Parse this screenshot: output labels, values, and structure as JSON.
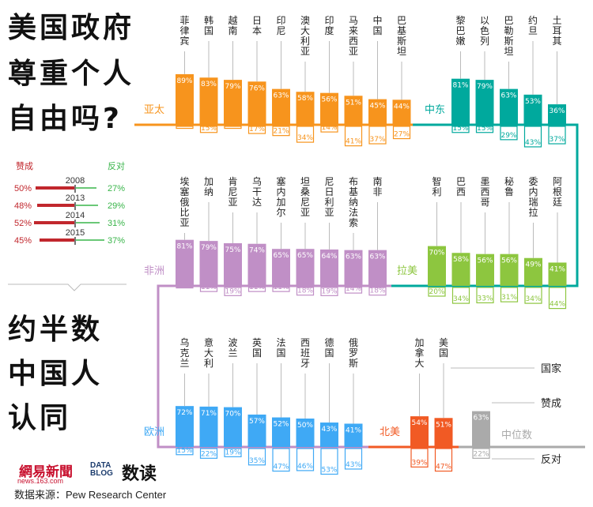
{
  "title_lines": [
    "美国政府",
    "尊重个人",
    "自由吗?"
  ],
  "subtitle_lines": [
    "约半数",
    "中国人",
    "认同"
  ],
  "source": "数据来源：Pew Research Center",
  "logos": {
    "netease": "網易新聞",
    "netease_sub": "news.163.com",
    "datablog": "DATA BLOG",
    "shudu": "数读"
  },
  "legend_key": {
    "country": "国家",
    "favor": "赞成",
    "median": "中位数",
    "oppose": "反对",
    "median_favor": 63,
    "median_oppose": 22
  },
  "trend_legend": {
    "favor_label": "赞成",
    "oppose_label": "反对",
    "rows": [
      {
        "year": "2008",
        "favor": 50,
        "oppose": 27
      },
      {
        "year": "2013",
        "favor": 48,
        "oppose": 29
      },
      {
        "year": "2014",
        "favor": 52,
        "oppose": 31
      },
      {
        "year": "2015",
        "favor": 45,
        "oppose": 37
      }
    ]
  },
  "colors": {
    "asia": "#f7941d",
    "mideast": "#00a99d",
    "africa": "#c08fc6",
    "latam": "#8dc63f",
    "europe": "#3fa9f5",
    "namerica": "#f15a24",
    "median": "#aaaaaa",
    "favor": "#c1272d",
    "oppose": "#39b54a"
  },
  "chart_data": {
    "type": "bar",
    "regions": [
      {
        "name": "亚太",
        "color": "#f7941d",
        "countries": [
          {
            "name": "菲律宾",
            "favor": 89,
            "oppose": 7
          },
          {
            "name": "韩国",
            "favor": 83,
            "oppose": 15
          },
          {
            "name": "越南",
            "favor": 79,
            "oppose": 7
          },
          {
            "name": "日本",
            "favor": 76,
            "oppose": 17
          },
          {
            "name": "印尼",
            "favor": 63,
            "oppose": 21
          },
          {
            "name": "澳大利亚",
            "favor": 58,
            "oppose": 34
          },
          {
            "name": "印度",
            "favor": 56,
            "oppose": 14
          },
          {
            "name": "马来西亚",
            "favor": 51,
            "oppose": 41
          },
          {
            "name": "中国",
            "favor": 45,
            "oppose": 37
          },
          {
            "name": "巴基斯坦",
            "favor": 44,
            "oppose": 27
          }
        ]
      },
      {
        "name": "中东",
        "color": "#00a99d",
        "countries": [
          {
            "name": "黎巴嫩",
            "favor": 81,
            "oppose": 15
          },
          {
            "name": "以色列",
            "favor": 79,
            "oppose": 15
          },
          {
            "name": "巴勒斯坦",
            "favor": 63,
            "oppose": 29
          },
          {
            "name": "约旦",
            "favor": 53,
            "oppose": 43
          },
          {
            "name": "土耳其",
            "favor": 36,
            "oppose": 37
          }
        ]
      },
      {
        "name": "非洲",
        "color": "#c08fc6",
        "countries": [
          {
            "name": "埃塞俄比亚",
            "favor": 81,
            "oppose": 4
          },
          {
            "name": "加纳",
            "favor": 79,
            "oppose": 11
          },
          {
            "name": "肯尼亚",
            "favor": 75,
            "oppose": 19
          },
          {
            "name": "乌干达",
            "favor": 74,
            "oppose": 11
          },
          {
            "name": "塞内加尔",
            "favor": 65,
            "oppose": 11
          },
          {
            "name": "坦桑尼亚",
            "favor": 65,
            "oppose": 18
          },
          {
            "name": "尼日利亚",
            "favor": 64,
            "oppose": 19
          },
          {
            "name": "布基纳法索",
            "favor": 63,
            "oppose": 14
          },
          {
            "name": "南非",
            "favor": 63,
            "oppose": 18
          }
        ]
      },
      {
        "name": "拉美",
        "color": "#8dc63f",
        "countries": [
          {
            "name": "智利",
            "favor": 70,
            "oppose": 20
          },
          {
            "name": "巴西",
            "favor": 58,
            "oppose": 34
          },
          {
            "name": "墨西哥",
            "favor": 56,
            "oppose": 33
          },
          {
            "name": "秘鲁",
            "favor": 56,
            "oppose": 31
          },
          {
            "name": "委内瑞拉",
            "favor": 49,
            "oppose": 34
          },
          {
            "name": "阿根廷",
            "favor": 41,
            "oppose": 44
          }
        ]
      },
      {
        "name": "欧洲",
        "color": "#3fa9f5",
        "countries": [
          {
            "name": "乌克兰",
            "favor": 72,
            "oppose": 15
          },
          {
            "name": "意大利",
            "favor": 71,
            "oppose": 22
          },
          {
            "name": "波兰",
            "favor": 70,
            "oppose": 19
          },
          {
            "name": "英国",
            "favor": 57,
            "oppose": 35
          },
          {
            "name": "法国",
            "favor": 52,
            "oppose": 47
          },
          {
            "name": "西班牙",
            "favor": 50,
            "oppose": 46
          },
          {
            "name": "德国",
            "favor": 43,
            "oppose": 53
          },
          {
            "name": "俄罗斯",
            "favor": 41,
            "oppose": 43
          }
        ]
      },
      {
        "name": "北美",
        "color": "#f15a24",
        "countries": [
          {
            "name": "加拿大",
            "favor": 54,
            "oppose": 39
          },
          {
            "name": "美国",
            "favor": 51,
            "oppose": 47
          }
        ]
      }
    ]
  }
}
